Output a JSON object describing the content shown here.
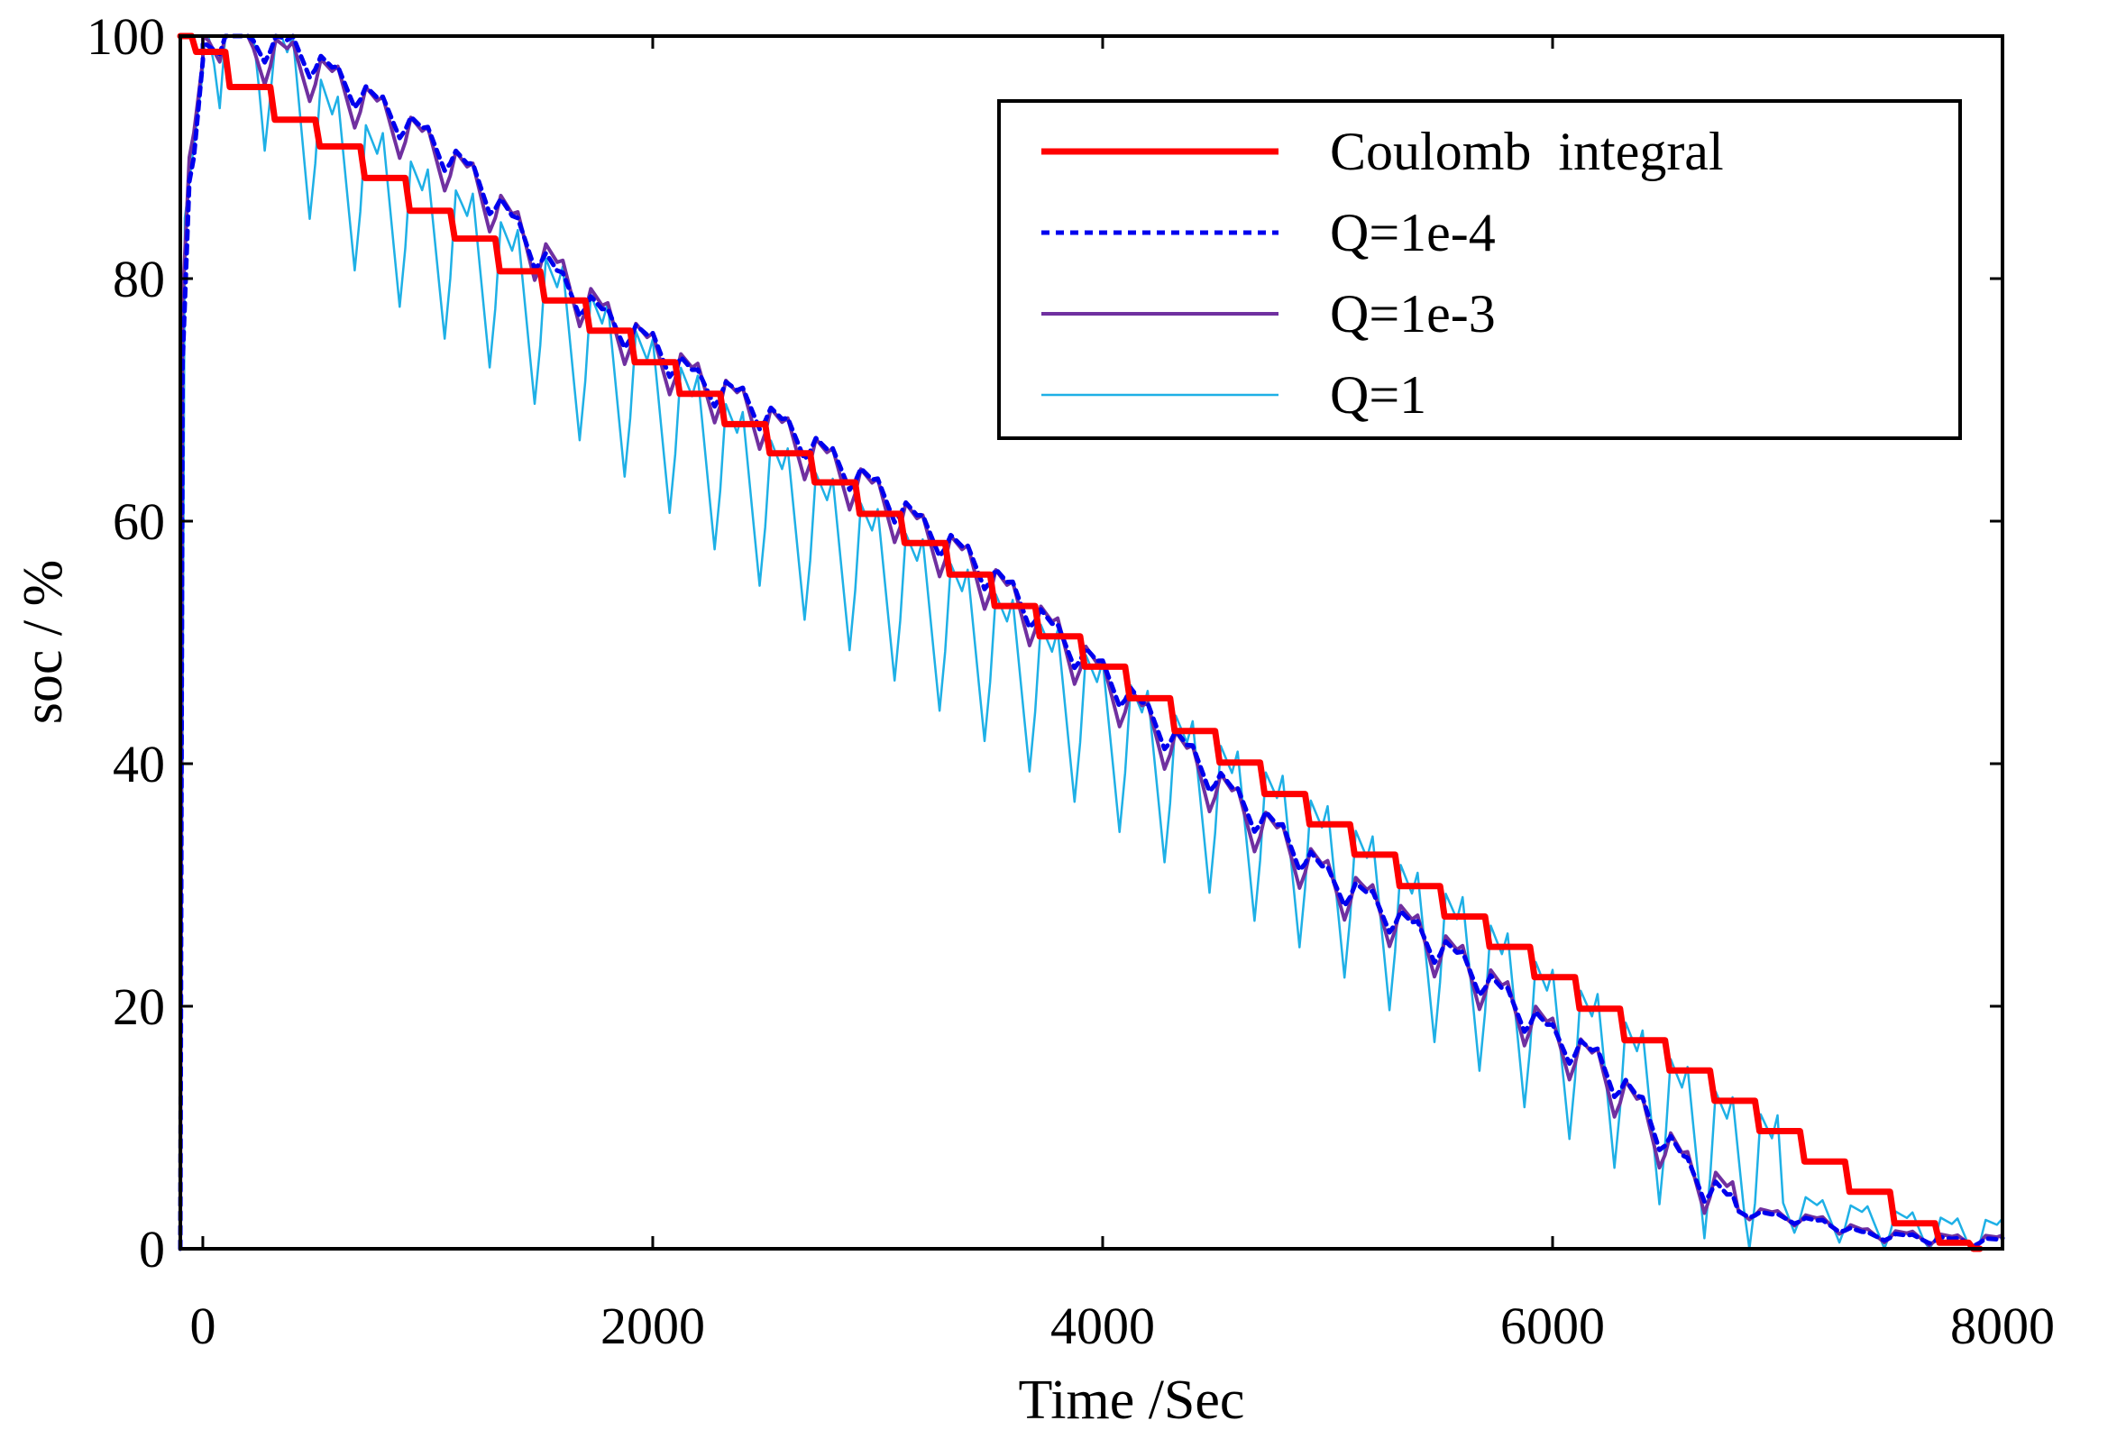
{
  "chart_data": {
    "type": "line",
    "title": "",
    "xlabel": "Time /Sec",
    "ylabel": "soc / %",
    "xlim": [
      -100,
      8000
    ],
    "ylim": [
      0,
      100
    ],
    "xticks": [
      0,
      2000,
      4000,
      6000,
      8000
    ],
    "xtick_labels": [
      "0",
      "2000",
      "4000",
      "6000",
      "8000"
    ],
    "yticks": [
      0,
      20,
      40,
      60,
      80,
      100
    ],
    "ytick_labels": [
      "0",
      "20",
      "40",
      "60",
      "80",
      "100"
    ],
    "grid": false,
    "legend_position": "top-right",
    "series": [
      {
        "name": "Coulomb  integral",
        "color": "#ff0000",
        "style": "solid-thick",
        "x": [
          -100,
          0,
          200,
          400,
          600,
          800,
          1000,
          1200,
          1400,
          1600,
          1800,
          2000,
          2200,
          2400,
          2600,
          2800,
          3000,
          3200,
          3400,
          3600,
          3800,
          4000,
          4200,
          4400,
          4600,
          4800,
          5000,
          5200,
          5400,
          5600,
          5800,
          6000,
          6200,
          6400,
          6600,
          6800,
          7000,
          7200,
          7400,
          7600,
          7800,
          7900
        ],
        "y": [
          100,
          98.7,
          95.8,
          93.1,
          90.9,
          88.3,
          85.6,
          83.3,
          80.6,
          78.2,
          75.7,
          73.1,
          70.5,
          68,
          65.6,
          63.2,
          60.6,
          58.2,
          55.6,
          53,
          50.5,
          48,
          45.4,
          42.7,
          40.1,
          37.5,
          35,
          32.5,
          29.9,
          27.4,
          24.9,
          22.4,
          19.8,
          17.2,
          14.7,
          12.2,
          9.7,
          7.2,
          4.7,
          2.1,
          0.5,
          0
        ]
      },
      {
        "name": "Q=1e-4",
        "color": "#0000ee",
        "style": "dotted",
        "x": [
          -100,
          -90,
          -60,
          -40,
          0,
          100,
          200,
          400,
          600,
          800,
          1000,
          1200,
          1400,
          1600,
          1800,
          2000,
          2200,
          2400,
          2600,
          2800,
          3000,
          3200,
          3400,
          3600,
          3800,
          4000,
          4200,
          4400,
          4600,
          4800,
          5000,
          5200,
          5400,
          5600,
          5800,
          6000,
          6200,
          6400,
          6600,
          6800,
          7000,
          7200,
          7400,
          7600,
          7800,
          8000
        ],
        "y": [
          0,
          73,
          88,
          90,
          98,
          100,
          99,
          98.5,
          96,
          93.5,
          91,
          88,
          83.5,
          79,
          76,
          74,
          71,
          69.5,
          67,
          64.5,
          62,
          59,
          56.5,
          53.5,
          50,
          47,
          43.5,
          40,
          36.5,
          33.5,
          30,
          28,
          25.5,
          23,
          20,
          17,
          15,
          11,
          6,
          3,
          2.5,
          2,
          1,
          0.8,
          0.5,
          0.5
        ],
        "oscillation": 3
      },
      {
        "name": "Q=1e-3",
        "color": "#7030a0",
        "style": "solid",
        "x": [
          -100,
          -90,
          -60,
          -40,
          0,
          100,
          200,
          400,
          600,
          800,
          1000,
          1200,
          1400,
          1600,
          1800,
          2000,
          2200,
          2400,
          2600,
          2800,
          3000,
          3200,
          3400,
          3600,
          3800,
          4000,
          4200,
          4400,
          4600,
          4800,
          5000,
          5200,
          5400,
          5600,
          5800,
          6000,
          6200,
          6400,
          6600,
          6800,
          7000,
          7200,
          7400,
          7600,
          7800,
          8000
        ],
        "y": [
          0,
          78,
          90,
          92,
          98,
          100,
          98,
          97,
          95,
          92.5,
          90,
          87,
          83,
          79,
          75.5,
          73,
          70.5,
          68.5,
          66,
          63.5,
          61,
          58,
          55.5,
          52.5,
          49.5,
          46,
          42.5,
          39,
          35.5,
          32.5,
          29.5,
          27.5,
          25,
          22.5,
          19.5,
          16.5,
          14,
          10,
          5.5,
          3,
          2.5,
          2,
          1,
          0.8,
          0.5,
          0.5
        ],
        "oscillation": 5
      },
      {
        "name": "Q=1",
        "color": "#1eb0e6",
        "style": "solid-thin",
        "x": [
          -100,
          -80,
          0,
          100,
          200,
          400,
          600,
          800,
          1000,
          1200,
          1400,
          1600,
          1800,
          2000,
          2200,
          2400,
          2600,
          2800,
          3000,
          3200,
          3400,
          3600,
          3800,
          4000,
          4200,
          4400,
          4600,
          4800,
          5000,
          5200,
          5400,
          5600,
          5800,
          6000,
          6200,
          6400,
          6600,
          6800,
          7000,
          7200,
          7400,
          7600,
          7800,
          8000
        ],
        "y": [
          0,
          85,
          97,
          100,
          98,
          92,
          87,
          84,
          81,
          79,
          76,
          73,
          70,
          67,
          64,
          61,
          58,
          55.5,
          53,
          50.5,
          48,
          45.5,
          43,
          40.5,
          38,
          35.5,
          33,
          31,
          28.5,
          26,
          23,
          21,
          18,
          15,
          13,
          10,
          7,
          4.5,
          3,
          2,
          1.5,
          1,
          0.5,
          0.5
        ],
        "oscillation": 16
      }
    ]
  }
}
